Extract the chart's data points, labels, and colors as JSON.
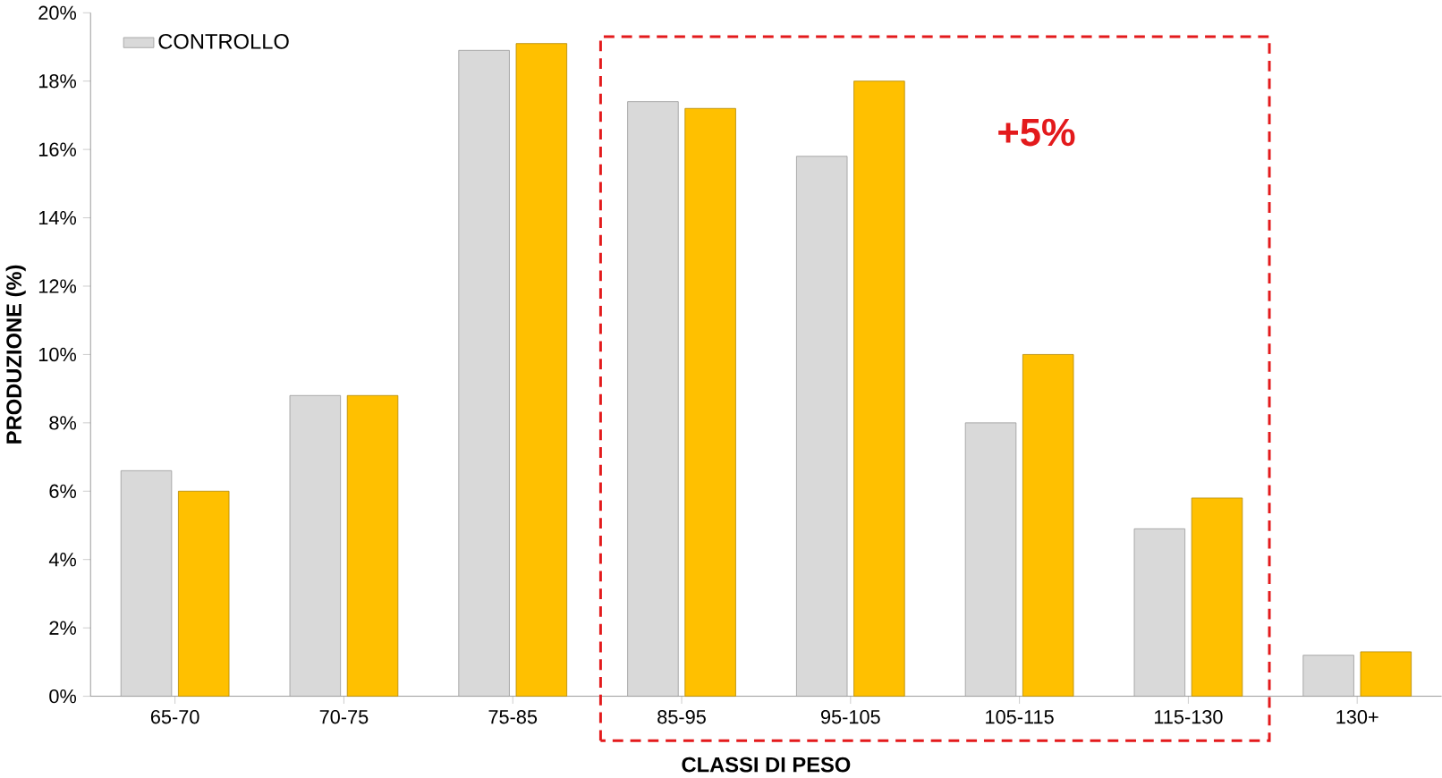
{
  "chart_data": {
    "type": "bar",
    "xlabel": "CLASSI DI PESO",
    "ylabel": "PRODUZIONE (%)",
    "categories": [
      "65-70",
      "70-75",
      "75-85",
      "85-95",
      "95-105",
      "105-115",
      "115-130",
      "130+"
    ],
    "series": [
      {
        "name": "CONTROLLO",
        "color": "#d9d9d9",
        "values": [
          6.6,
          8.8,
          18.9,
          17.4,
          15.8,
          8.0,
          4.9,
          1.2
        ]
      },
      {
        "color": "#ffc000",
        "values": [
          6.0,
          8.8,
          19.1,
          17.2,
          18.0,
          10.0,
          5.8,
          1.3
        ]
      }
    ],
    "ylim": [
      0,
      20
    ],
    "yticks": [
      {
        "value": 0,
        "label": "0%"
      },
      {
        "value": 2,
        "label": "2%"
      },
      {
        "value": 4,
        "label": "4%"
      },
      {
        "value": 6,
        "label": "6%"
      },
      {
        "value": 8,
        "label": "8%"
      },
      {
        "value": 10,
        "label": "10%"
      },
      {
        "value": 12,
        "label": "12%"
      },
      {
        "value": 14,
        "label": "14%"
      },
      {
        "value": 16,
        "label": "16%"
      },
      {
        "value": 18,
        "label": "18%"
      },
      {
        "value": 20,
        "label": "20%"
      }
    ],
    "annotations": [
      "+5%"
    ],
    "legend": "top left",
    "grid": false
  }
}
